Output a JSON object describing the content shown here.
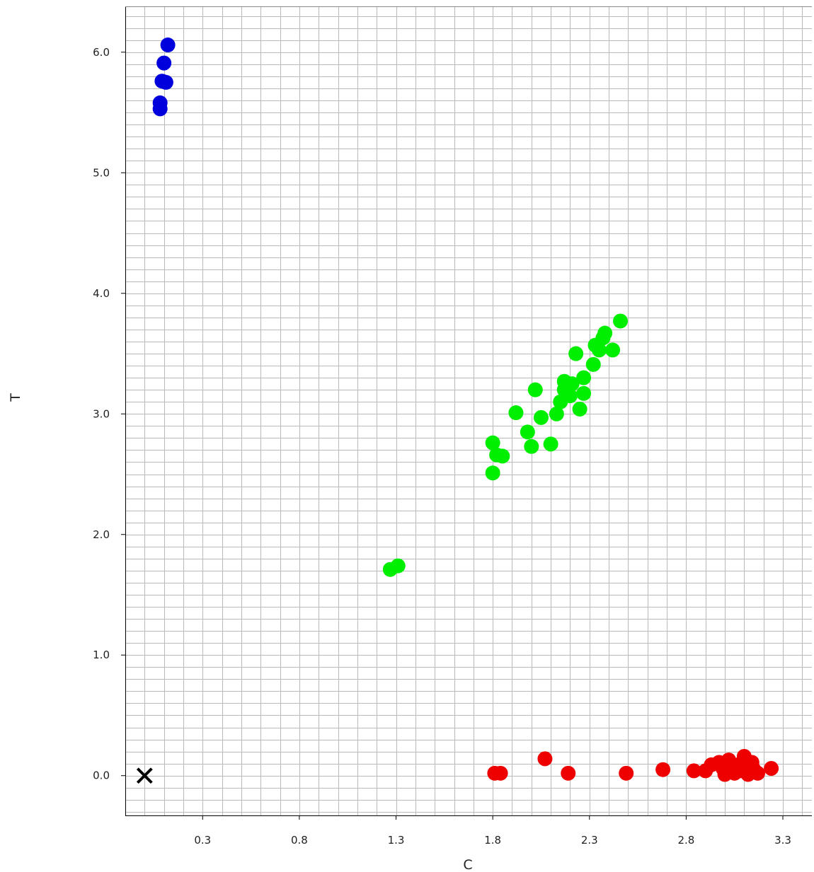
{
  "chart_data": {
    "type": "scatter",
    "title": "",
    "xlabel": "C",
    "ylabel": "T",
    "xlim": [
      -0.1,
      3.45
    ],
    "ylim": [
      -0.33,
      6.38
    ],
    "grid": true,
    "x_ticks": [
      0.3,
      0.8,
      1.3,
      1.8,
      2.3,
      2.8,
      3.3
    ],
    "x_tick_labels": [
      "0.3",
      "0.8",
      "1.3",
      "1.8",
      "2.3",
      "2.8",
      "3.3"
    ],
    "y_ticks": [
      0.0,
      1.0,
      2.0,
      3.0,
      4.0,
      5.0,
      6.0
    ],
    "y_tick_labels": [
      "0.0",
      "1.0",
      "2.0",
      "3.0",
      "4.0",
      "5.0",
      "6.0"
    ],
    "x_minor_step": 0.1,
    "y_minor_step": 0.1,
    "colors": {
      "background": "#ffffff",
      "grid": "#b9b9b9",
      "axis": "#000000",
      "blue": "#0000dd",
      "green": "#00ee00",
      "red": "#ee0000",
      "marker": "#000000"
    },
    "series": [
      {
        "color": "#0000dd",
        "marker": "circle",
        "points": [
          {
            "x": 0.12,
            "y": 6.06
          },
          {
            "x": 0.1,
            "y": 5.91
          },
          {
            "x": 0.09,
            "y": 5.76
          },
          {
            "x": 0.11,
            "y": 5.75
          },
          {
            "x": 0.08,
            "y": 5.58
          },
          {
            "x": 0.08,
            "y": 5.53
          }
        ]
      },
      {
        "color": "#00ee00",
        "marker": "circle",
        "points": [
          {
            "x": 1.27,
            "y": 1.71
          },
          {
            "x": 1.31,
            "y": 1.74
          },
          {
            "x": 1.8,
            "y": 2.51
          },
          {
            "x": 1.8,
            "y": 2.76
          },
          {
            "x": 1.82,
            "y": 2.66
          },
          {
            "x": 1.85,
            "y": 2.65
          },
          {
            "x": 1.92,
            "y": 3.01
          },
          {
            "x": 1.98,
            "y": 2.85
          },
          {
            "x": 2.0,
            "y": 2.73
          },
          {
            "x": 2.02,
            "y": 3.2
          },
          {
            "x": 2.05,
            "y": 2.97
          },
          {
            "x": 2.1,
            "y": 2.75
          },
          {
            "x": 2.13,
            "y": 3.0
          },
          {
            "x": 2.15,
            "y": 3.1
          },
          {
            "x": 2.17,
            "y": 3.2
          },
          {
            "x": 2.17,
            "y": 3.27
          },
          {
            "x": 2.2,
            "y": 3.15
          },
          {
            "x": 2.21,
            "y": 3.25
          },
          {
            "x": 2.23,
            "y": 3.5
          },
          {
            "x": 2.25,
            "y": 3.04
          },
          {
            "x": 2.27,
            "y": 3.17
          },
          {
            "x": 2.27,
            "y": 3.3
          },
          {
            "x": 2.32,
            "y": 3.41
          },
          {
            "x": 2.33,
            "y": 3.57
          },
          {
            "x": 2.35,
            "y": 3.53
          },
          {
            "x": 2.37,
            "y": 3.63
          },
          {
            "x": 2.38,
            "y": 3.67
          },
          {
            "x": 2.42,
            "y": 3.53
          },
          {
            "x": 2.46,
            "y": 3.77
          }
        ]
      },
      {
        "color": "#ee0000",
        "marker": "circle",
        "points": [
          {
            "x": 1.81,
            "y": 0.02
          },
          {
            "x": 1.84,
            "y": 0.02
          },
          {
            "x": 2.07,
            "y": 0.14
          },
          {
            "x": 2.19,
            "y": 0.02
          },
          {
            "x": 2.49,
            "y": 0.02
          },
          {
            "x": 2.68,
            "y": 0.05
          },
          {
            "x": 2.84,
            "y": 0.04
          },
          {
            "x": 2.9,
            "y": 0.04
          },
          {
            "x": 2.93,
            "y": 0.09
          },
          {
            "x": 2.97,
            "y": 0.11
          },
          {
            "x": 2.99,
            "y": 0.06
          },
          {
            "x": 3.0,
            "y": 0.01
          },
          {
            "x": 3.02,
            "y": 0.13
          },
          {
            "x": 3.03,
            "y": 0.06
          },
          {
            "x": 3.05,
            "y": 0.02
          },
          {
            "x": 3.07,
            "y": 0.09
          },
          {
            "x": 3.08,
            "y": 0.04
          },
          {
            "x": 3.1,
            "y": 0.16
          },
          {
            "x": 3.11,
            "y": 0.05
          },
          {
            "x": 3.12,
            "y": 0.01
          },
          {
            "x": 3.14,
            "y": 0.11
          },
          {
            "x": 3.15,
            "y": 0.05
          },
          {
            "x": 3.17,
            "y": 0.02
          },
          {
            "x": 3.24,
            "y": 0.06
          }
        ]
      },
      {
        "color": "#000000",
        "marker": "x",
        "points": [
          {
            "x": 0.0,
            "y": 0.0
          }
        ]
      }
    ]
  }
}
